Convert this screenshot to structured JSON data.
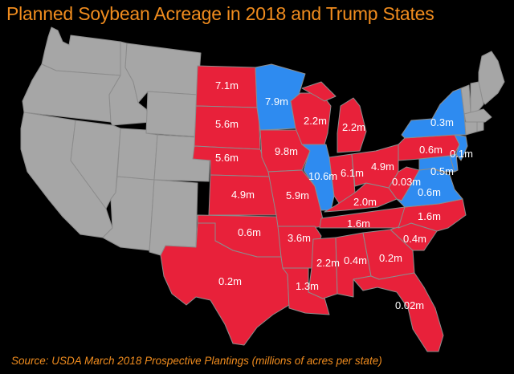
{
  "title": "Planned Soybean Acreage in 2018 and Trump States",
  "source": "Source: USDA March 2018 Prospective Plantings (millions of acres per state)",
  "colors": {
    "background": "#000000",
    "title": "#f08c1e",
    "trump_state": "#e8213a",
    "clinton_state": "#2e8bf0",
    "no_data": "#a6a6a6",
    "border": "#8c8c8c"
  },
  "states": [
    {
      "id": "ND",
      "label": "7.1m",
      "party": "trump"
    },
    {
      "id": "SD",
      "label": "5.6m",
      "party": "trump"
    },
    {
      "id": "NE",
      "label": "5.6m",
      "party": "trump"
    },
    {
      "id": "KS",
      "label": "4.9m",
      "party": "trump"
    },
    {
      "id": "OK",
      "label": "0.6m",
      "party": "trump"
    },
    {
      "id": "TX",
      "label": "0.2m",
      "party": "trump"
    },
    {
      "id": "MN",
      "label": "7.9m",
      "party": "clinton"
    },
    {
      "id": "IA",
      "label": "9.8m",
      "party": "trump"
    },
    {
      "id": "MO",
      "label": "5.9m",
      "party": "trump"
    },
    {
      "id": "AR",
      "label": "3.6m",
      "party": "trump"
    },
    {
      "id": "LA",
      "label": "1.3m",
      "party": "trump"
    },
    {
      "id": "WI",
      "label": "2.2m",
      "party": "trump"
    },
    {
      "id": "IL",
      "label": "10.6m",
      "party": "clinton"
    },
    {
      "id": "MS",
      "label": "2.2m",
      "party": "trump"
    },
    {
      "id": "MI",
      "label": "2.2m",
      "party": "trump"
    },
    {
      "id": "IN",
      "label": "6.1m",
      "party": "trump"
    },
    {
      "id": "KY",
      "label": "2.0m",
      "party": "trump"
    },
    {
      "id": "TN",
      "label": "1.6m",
      "party": "trump"
    },
    {
      "id": "AL",
      "label": "0.4m",
      "party": "trump"
    },
    {
      "id": "OH",
      "label": "4.9m",
      "party": "trump"
    },
    {
      "id": "WV",
      "label": "0.03m",
      "party": "trump"
    },
    {
      "id": "GA",
      "label": "0.2m",
      "party": "trump"
    },
    {
      "id": "FL",
      "label": "0.02m",
      "party": "trump"
    },
    {
      "id": "SC",
      "label": "0.4m",
      "party": "trump"
    },
    {
      "id": "NC",
      "label": "1.6m",
      "party": "trump"
    },
    {
      "id": "VA",
      "label": "0.6m",
      "party": "clinton"
    },
    {
      "id": "MD",
      "label": "0.5m",
      "party": "clinton"
    },
    {
      "id": "DE",
      "label": "",
      "party": "clinton"
    },
    {
      "id": "PA",
      "label": "0.6m",
      "party": "trump"
    },
    {
      "id": "NJ",
      "label": "0.1m",
      "party": "clinton"
    },
    {
      "id": "NY",
      "label": "0.3m",
      "party": "clinton"
    }
  ]
}
